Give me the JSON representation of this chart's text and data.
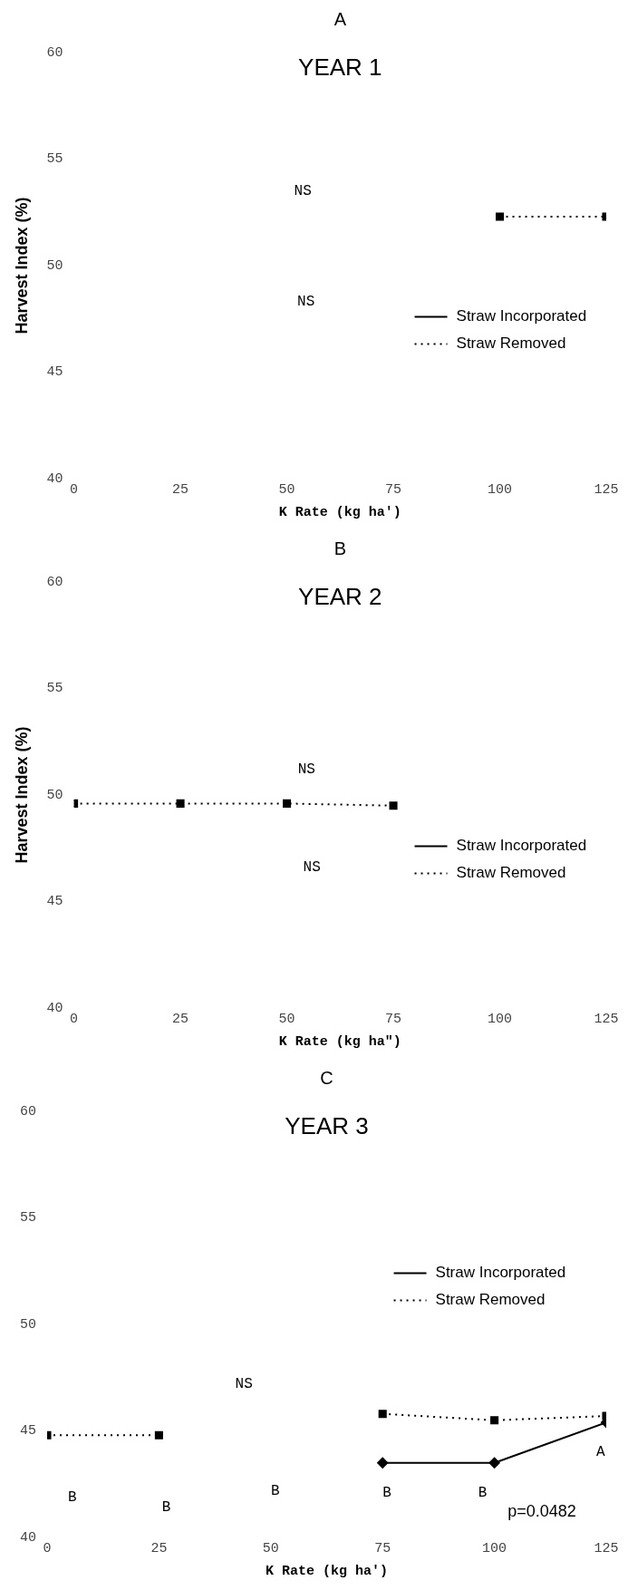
{
  "chart_data": [
    {
      "type": "line",
      "title": "YEAR 1",
      "xlabel": "K Rate (kg ha')",
      "ylabel": "Harvest Index (%)",
      "xlim": [
        0,
        125
      ],
      "ylim": [
        40,
        60
      ],
      "xticks": [
        0,
        25,
        50,
        75,
        100,
        125
      ],
      "yticks": [
        40,
        45,
        50,
        55,
        60
      ],
      "grid": false,
      "legend": "bottom right",
      "series": [
        {
          "name": "Straw Incorporated",
          "color": "#000000",
          "line_style": "solid",
          "marker": "diamond"
        },
        {
          "name": "Straw Removed",
          "color": "#000000",
          "line_style": "dotted",
          "marker": "square",
          "x": [
            100,
            125
          ],
          "values": [
            52.3,
            52.3
          ]
        }
      ],
      "annotations": [
        "A",
        "NS",
        "NS"
      ]
    },
    {
      "type": "line",
      "title": "YEAR 2",
      "xlabel": "K Rate (kg ha\")",
      "ylabel": "Harvest Index (%)",
      "xlim": [
        0,
        125
      ],
      "ylim": [
        40,
        60
      ],
      "xticks": [
        0,
        25,
        50,
        75,
        100,
        125
      ],
      "yticks": [
        40,
        45,
        50,
        55,
        60
      ],
      "grid": false,
      "legend": "bottom right",
      "series": [
        {
          "name": "Straw Incorporated",
          "color": "#000000",
          "line_style": "solid",
          "marker": "diamond"
        },
        {
          "name": "Straw Removed",
          "color": "#000000",
          "line_style": "dotted",
          "marker": "square",
          "x": [
            0,
            25,
            50,
            75
          ],
          "values": [
            49.6,
            49.6,
            49.6,
            49.5
          ]
        }
      ],
      "annotations": [
        "B",
        "NS",
        "NS"
      ]
    },
    {
      "type": "line",
      "title": "YEAR 3",
      "xlabel": "K Rate (kg ha')",
      "xlim": [
        0,
        125
      ],
      "ylim": [
        40,
        60
      ],
      "xticks": [
        0,
        25,
        50,
        75,
        100,
        125
      ],
      "yticks": [
        40,
        45,
        50,
        55,
        60
      ],
      "grid": false,
      "legend": "right",
      "series": [
        {
          "name": "Straw Incorporated",
          "color": "#000000",
          "line_style": "solid",
          "marker": "diamond",
          "x": [
            75,
            100,
            125
          ],
          "values": [
            43.5,
            43.5,
            45.4
          ]
        },
        {
          "name": "Straw Removed",
          "color": "#000000",
          "line_style": "dotted",
          "marker": "square",
          "x": [
            0,
            25,
            50,
            75,
            100,
            125
          ],
          "values": [
            44.8,
            44.8,
            null,
            45.8,
            45.5,
            45.7
          ]
        }
      ],
      "annotations": [
        "C",
        "NS",
        "B",
        "B",
        "B",
        "B",
        "B",
        "A",
        "p=0.0482"
      ]
    }
  ]
}
